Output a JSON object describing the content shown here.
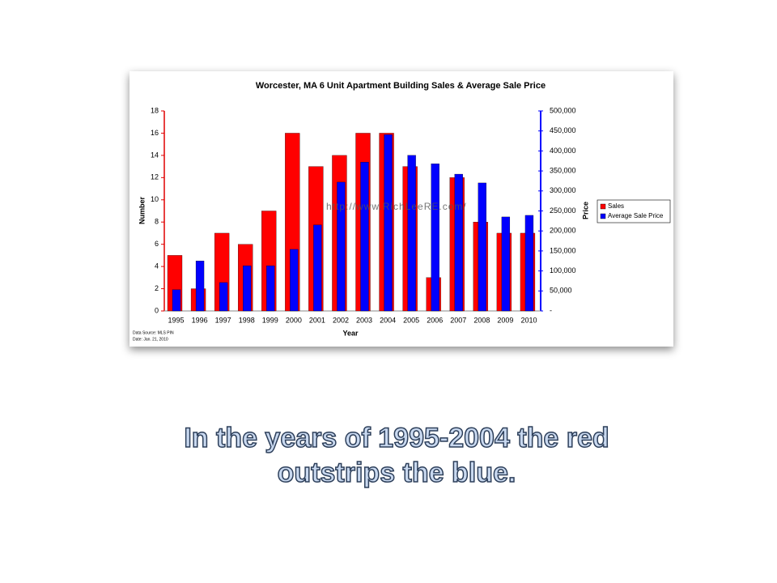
{
  "chart_data": {
    "type": "bar",
    "title": "Worcester, MA 6 Unit Apartment Building Sales & Average Sale Price",
    "x_label": "Year",
    "y_label": "Number",
    "y2_label": "Price",
    "categories": [
      "1995",
      "1996",
      "1997",
      "1998",
      "1999",
      "2000",
      "2001",
      "2002",
      "2003",
      "2004",
      "2005",
      "2006",
      "2007",
      "2008",
      "2009",
      "2010"
    ],
    "series": [
      {
        "name": "Sales",
        "color": "#ff0000",
        "values": [
          5,
          2,
          7,
          6,
          9,
          16,
          13,
          14,
          16,
          16,
          13,
          3,
          12,
          8,
          7,
          7
        ]
      },
      {
        "name": "Average Sale Price",
        "color": "#0000ff",
        "axis": "y2",
        "values": [
          53000,
          125000,
          71000,
          113000,
          113000,
          154000,
          215000,
          322000,
          372000,
          441000,
          389000,
          368000,
          342000,
          320000,
          235000,
          239000
        ]
      }
    ],
    "ylim": [
      0,
      18
    ],
    "yticks": [
      0,
      2,
      4,
      6,
      8,
      10,
      12,
      14,
      16,
      18
    ],
    "y2lim": [
      0,
      500000
    ],
    "y2ticks": [
      {
        "value": 0,
        "label": "-"
      },
      {
        "value": 50000,
        "label": "50,000"
      },
      {
        "value": 100000,
        "label": "100,000"
      },
      {
        "value": 150000,
        "label": "150,000"
      },
      {
        "value": 200000,
        "label": "200,000"
      },
      {
        "value": 250000,
        "label": "250,000"
      },
      {
        "value": 300000,
        "label": "300,000"
      },
      {
        "value": 350000,
        "label": "350,000"
      },
      {
        "value": 400000,
        "label": "400,000"
      },
      {
        "value": 450000,
        "label": "450,000"
      },
      {
        "value": 500000,
        "label": "500,000"
      }
    ],
    "legend": "right",
    "watermark": "http://www.RichLeeRE.com/",
    "source": "Data Source: MLS PIN",
    "date": "Date: Jan. 21, 2010"
  },
  "caption": "In the years of 1995-2004 the red outstrips the blue."
}
